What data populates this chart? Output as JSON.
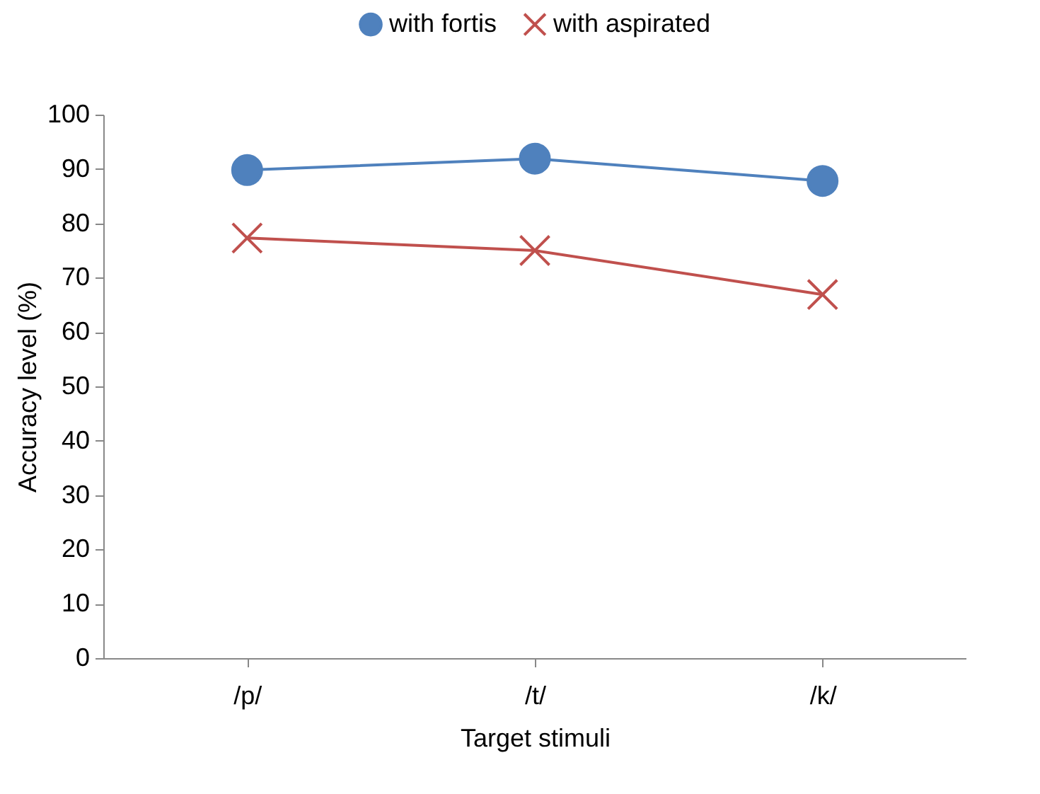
{
  "chart_data": {
    "type": "line",
    "xlabel": "Target stimuli",
    "ylabel": "Accuracy level (%)",
    "categories": [
      "/p/",
      "/t/",
      "/k/"
    ],
    "ylim": [
      0,
      100
    ],
    "yticks": [
      0,
      10,
      20,
      30,
      40,
      50,
      60,
      70,
      80,
      90,
      100
    ],
    "grid": false,
    "legend": "top",
    "series": [
      {
        "name": "with fortis",
        "color": "#4f81bd",
        "marker": "circle",
        "values": [
          89.8,
          91.9,
          87.8
        ]
      },
      {
        "name": "with aspirated",
        "color": "#c0504d",
        "marker": "cross",
        "values": [
          77.3,
          75,
          66.9
        ]
      }
    ]
  }
}
